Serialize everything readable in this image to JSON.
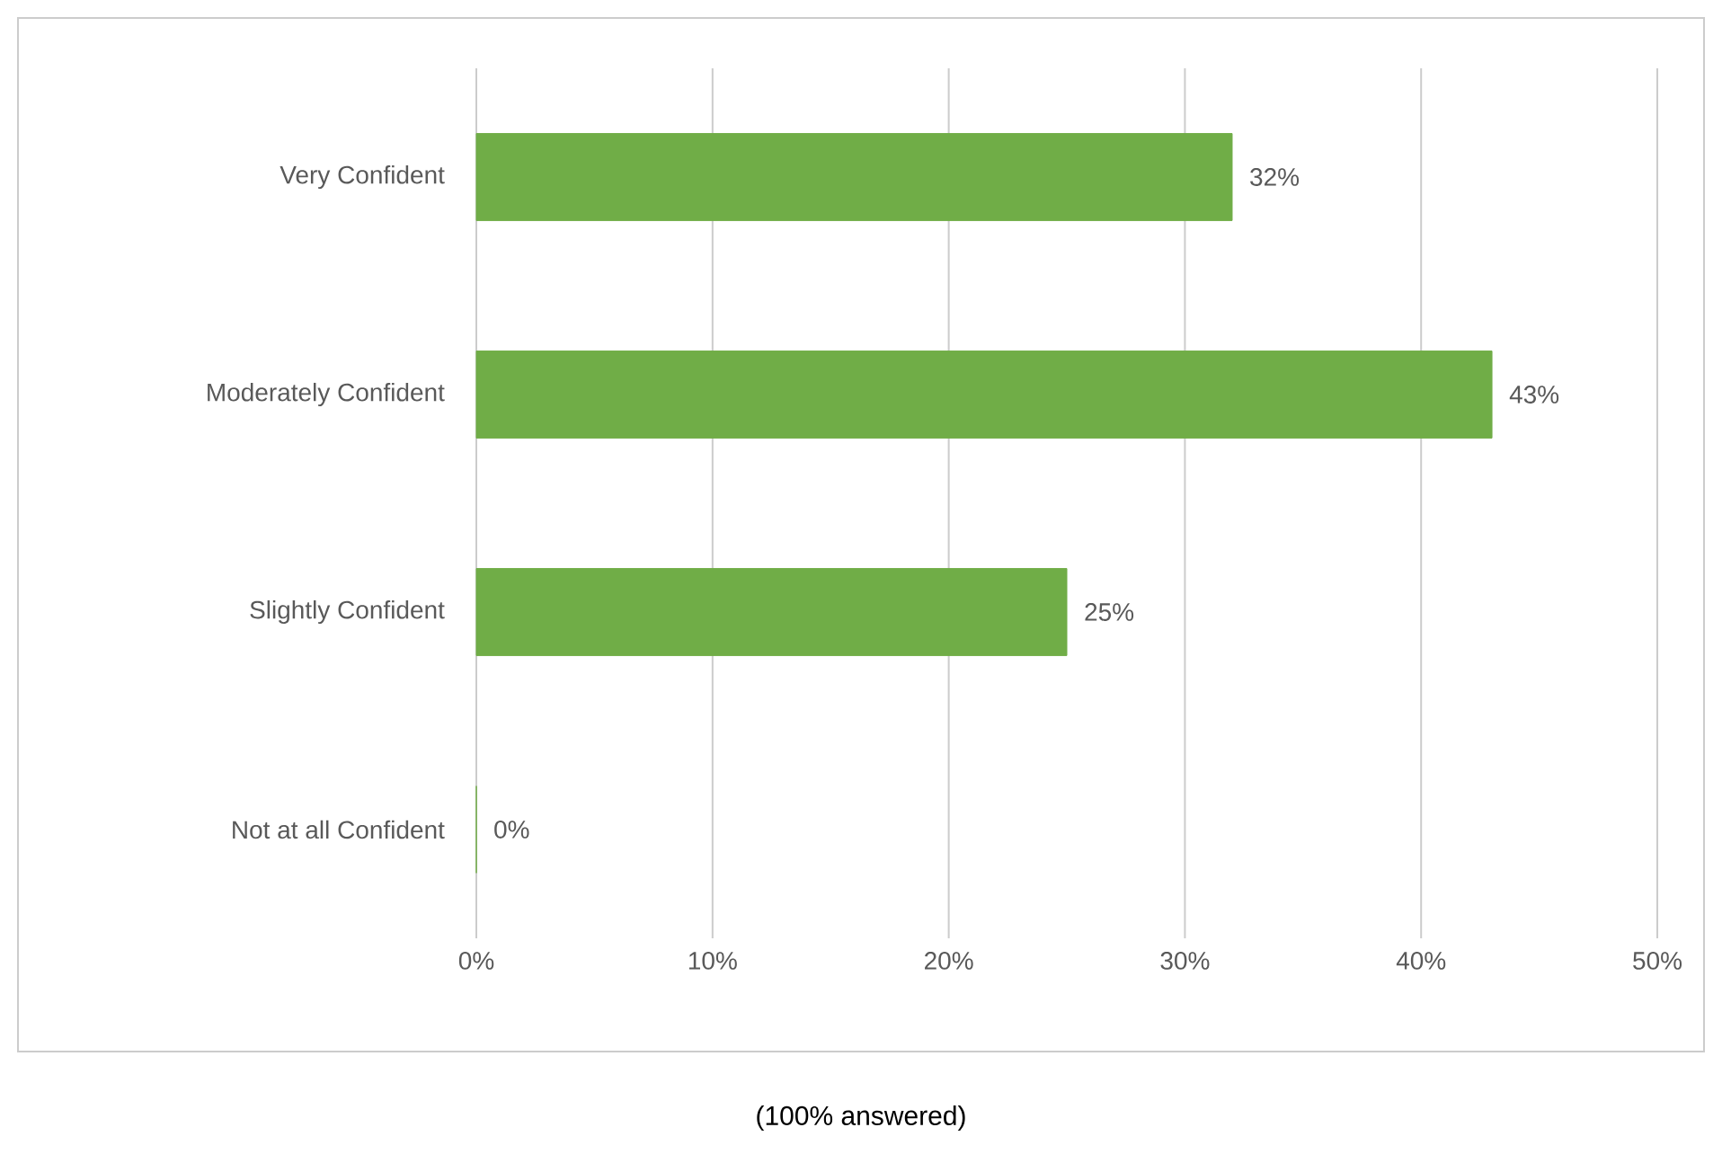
{
  "chart_data": {
    "type": "bar",
    "orientation": "horizontal",
    "categories": [
      "Very Confident",
      "Moderately Confident",
      "Slightly Confident",
      "Not at all Confident"
    ],
    "values": [
      32,
      43,
      25,
      0
    ],
    "value_labels": [
      "32%",
      "43%",
      "25%",
      "0%"
    ],
    "color": "#70ad47",
    "xlim": [
      0,
      50
    ],
    "xticks": [
      {
        "value": 0,
        "label": "0%"
      },
      {
        "value": 10,
        "label": "10%"
      },
      {
        "value": 20,
        "label": "20%"
      },
      {
        "value": 30,
        "label": "30%"
      },
      {
        "value": 40,
        "label": "40%"
      },
      {
        "value": 50,
        "label": "50%"
      }
    ],
    "grid": "x",
    "annotations": [
      "(100% answered)"
    ]
  }
}
